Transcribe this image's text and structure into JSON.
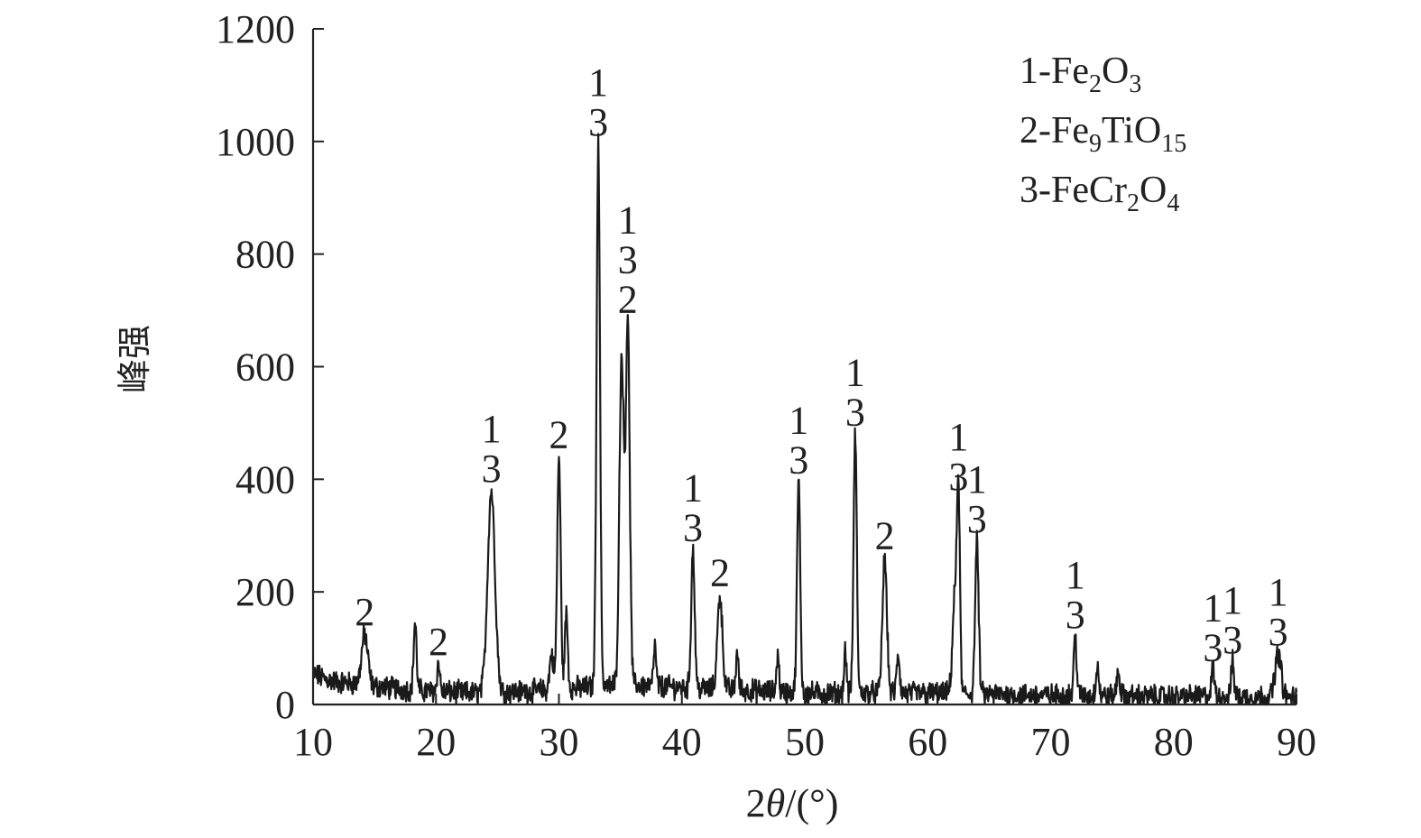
{
  "chart_data": {
    "type": "line",
    "xlabel_main": "2",
    "xlabel_theta": "θ",
    "xlabel_unit": "/(°)",
    "ylabel": "峰强",
    "xlim": [
      10,
      90
    ],
    "ylim": [
      0,
      1200
    ],
    "xticks": [
      10,
      20,
      30,
      40,
      50,
      60,
      70,
      80,
      90
    ],
    "yticks": [
      0,
      200,
      400,
      600,
      800,
      1000,
      1200
    ],
    "grid": false,
    "legend_position": "top-right",
    "legend": [
      {
        "prefix": "1-Fe",
        "parts": [
          [
            "2",
            "sub"
          ],
          [
            "O",
            "n"
          ],
          [
            "3",
            "sub"
          ]
        ]
      },
      {
        "prefix": "2-Fe",
        "parts": [
          [
            "9",
            "sub"
          ],
          [
            "TiO",
            "n"
          ],
          [
            "15",
            "sub"
          ]
        ]
      },
      {
        "prefix": "3-FeCr",
        "parts": [
          [
            "2",
            "sub"
          ],
          [
            "O",
            "n"
          ],
          [
            "4",
            "sub"
          ]
        ]
      }
    ],
    "series": [
      {
        "line_color": "#1a1a1a",
        "baseline": [
          [
            10,
            55
          ],
          [
            11,
            45
          ],
          [
            12,
            40
          ],
          [
            13,
            38
          ],
          [
            15,
            32
          ],
          [
            17,
            28
          ],
          [
            19,
            24
          ],
          [
            21,
            22
          ],
          [
            23,
            20
          ],
          [
            26,
            22
          ],
          [
            28,
            24
          ],
          [
            32,
            30
          ],
          [
            36,
            35
          ],
          [
            40,
            30
          ],
          [
            45,
            25
          ],
          [
            50,
            20
          ],
          [
            55,
            20
          ],
          [
            60,
            20
          ],
          [
            65,
            18
          ],
          [
            70,
            16
          ],
          [
            75,
            15
          ],
          [
            80,
            14
          ],
          [
            85,
            14
          ],
          [
            90,
            12
          ]
        ],
        "peaks": [
          {
            "x": 14.2,
            "y": 125,
            "w": 0.25
          },
          {
            "x": 18.3,
            "y": 145,
            "w": 0.12
          },
          {
            "x": 20.2,
            "y": 72,
            "w": 0.12
          },
          {
            "x": 24.5,
            "y": 380,
            "w": 0.3
          },
          {
            "x": 29.4,
            "y": 90,
            "w": 0.15
          },
          {
            "x": 30.0,
            "y": 440,
            "w": 0.14
          },
          {
            "x": 30.6,
            "y": 160,
            "w": 0.12
          },
          {
            "x": 33.2,
            "y": 995,
            "w": 0.14
          },
          {
            "x": 35.1,
            "y": 620,
            "w": 0.18
          },
          {
            "x": 35.6,
            "y": 680,
            "w": 0.16
          },
          {
            "x": 37.8,
            "y": 105,
            "w": 0.1
          },
          {
            "x": 40.9,
            "y": 275,
            "w": 0.14
          },
          {
            "x": 43.1,
            "y": 195,
            "w": 0.2
          },
          {
            "x": 44.5,
            "y": 95,
            "w": 0.1
          },
          {
            "x": 47.8,
            "y": 90,
            "w": 0.1
          },
          {
            "x": 49.5,
            "y": 395,
            "w": 0.13
          },
          {
            "x": 53.3,
            "y": 95,
            "w": 0.1
          },
          {
            "x": 54.1,
            "y": 480,
            "w": 0.13
          },
          {
            "x": 56.5,
            "y": 260,
            "w": 0.18
          },
          {
            "x": 57.6,
            "y": 90,
            "w": 0.12
          },
          {
            "x": 62.2,
            "y": 190,
            "w": 0.18
          },
          {
            "x": 62.5,
            "y": 365,
            "w": 0.12
          },
          {
            "x": 64.0,
            "y": 290,
            "w": 0.14
          },
          {
            "x": 72.0,
            "y": 120,
            "w": 0.12
          },
          {
            "x": 73.8,
            "y": 70,
            "w": 0.12
          },
          {
            "x": 75.5,
            "y": 60,
            "w": 0.12
          },
          {
            "x": 83.2,
            "y": 62,
            "w": 0.12
          },
          {
            "x": 84.8,
            "y": 75,
            "w": 0.12
          },
          {
            "x": 88.5,
            "y": 90,
            "w": 0.25
          }
        ]
      }
    ],
    "peak_labels": [
      {
        "x": 14.2,
        "y": 125,
        "labels": [
          "2"
        ]
      },
      {
        "x": 20.2,
        "y": 72,
        "labels": [
          "2"
        ]
      },
      {
        "x": 24.5,
        "y": 380,
        "labels": [
          "1",
          "3"
        ]
      },
      {
        "x": 30.0,
        "y": 440,
        "labels": [
          "2"
        ]
      },
      {
        "x": 33.2,
        "y": 995,
        "labels": [
          "1",
          "3"
        ]
      },
      {
        "x": 35.6,
        "y": 680,
        "labels": [
          "1",
          "3",
          "2"
        ]
      },
      {
        "x": 40.9,
        "y": 275,
        "labels": [
          "1",
          "3"
        ]
      },
      {
        "x": 43.1,
        "y": 195,
        "labels": [
          "2"
        ]
      },
      {
        "x": 49.5,
        "y": 395,
        "labels": [
          "1",
          "3"
        ]
      },
      {
        "x": 54.1,
        "y": 480,
        "labels": [
          "1",
          "3"
        ]
      },
      {
        "x": 56.5,
        "y": 260,
        "labels": [
          "2"
        ]
      },
      {
        "x": 62.5,
        "y": 365,
        "labels": [
          "1",
          "3"
        ]
      },
      {
        "x": 64.0,
        "y": 290,
        "labels": [
          "1",
          "3"
        ]
      },
      {
        "x": 72.0,
        "y": 120,
        "labels": [
          "1",
          "3"
        ]
      },
      {
        "x": 83.2,
        "y": 62,
        "labels": [
          "1",
          "3"
        ]
      },
      {
        "x": 84.8,
        "y": 75,
        "labels": [
          "1",
          "3"
        ]
      },
      {
        "x": 88.5,
        "y": 90,
        "labels": [
          "1",
          "3"
        ]
      }
    ]
  }
}
